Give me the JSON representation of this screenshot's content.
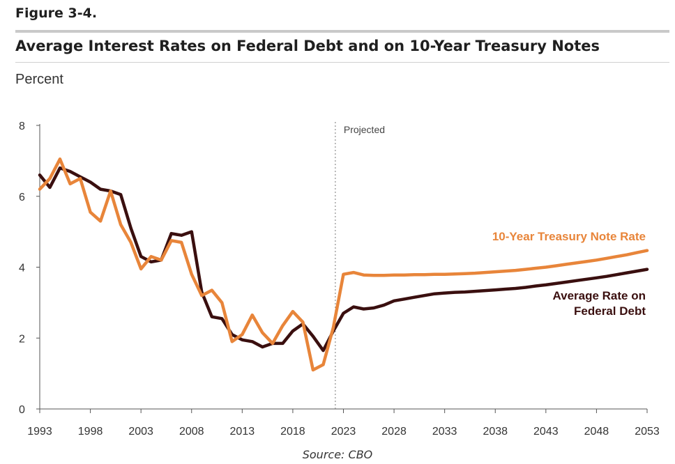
{
  "figure_label": "Figure 3-4.",
  "source": "Source: CBO",
  "chart_data": {
    "type": "line",
    "title": "Average Interest Rates on Federal Debt and on 10-Year Treasury Notes",
    "ylabel": "Percent",
    "xlabel": "",
    "xlim": [
      1993,
      2053
    ],
    "ylim": [
      0,
      8
    ],
    "x_ticks": [
      1993,
      1998,
      2003,
      2008,
      2013,
      2018,
      2023,
      2028,
      2033,
      2038,
      2043,
      2048,
      2053
    ],
    "y_ticks": [
      0,
      2,
      4,
      6,
      8
    ],
    "grid": false,
    "projection_line": {
      "x": 2022.2,
      "label": "Projected"
    },
    "series": [
      {
        "name": "Average Rate on Federal Debt",
        "label_lines": [
          "Average Rate on",
          "Federal Debt"
        ],
        "color": "#3a0f0f",
        "x": [
          1993,
          1994,
          1995,
          1996,
          1997,
          1998,
          1999,
          2000,
          2001,
          2002,
          2003,
          2004,
          2005,
          2006,
          2007,
          2008,
          2009,
          2010,
          2011,
          2012,
          2013,
          2014,
          2015,
          2016,
          2017,
          2018,
          2019,
          2020,
          2021,
          2022,
          2023,
          2024,
          2025,
          2026,
          2027,
          2028,
          2029,
          2030,
          2031,
          2032,
          2033,
          2034,
          2035,
          2036,
          2037,
          2038,
          2039,
          2040,
          2041,
          2042,
          2043,
          2044,
          2045,
          2046,
          2047,
          2048,
          2049,
          2050,
          2051,
          2052,
          2053
        ],
        "values": [
          6.6,
          6.25,
          6.8,
          6.7,
          6.55,
          6.4,
          6.2,
          6.15,
          6.05,
          5.1,
          4.3,
          4.15,
          4.2,
          4.95,
          4.9,
          5.0,
          3.3,
          2.6,
          2.55,
          2.1,
          1.95,
          1.9,
          1.75,
          1.85,
          1.85,
          2.2,
          2.4,
          2.05,
          1.65,
          2.2,
          2.7,
          2.88,
          2.82,
          2.85,
          2.93,
          3.05,
          3.1,
          3.15,
          3.2,
          3.25,
          3.27,
          3.29,
          3.3,
          3.32,
          3.34,
          3.36,
          3.38,
          3.4,
          3.43,
          3.47,
          3.5,
          3.54,
          3.58,
          3.62,
          3.66,
          3.7,
          3.74,
          3.79,
          3.84,
          3.89,
          3.94
        ]
      },
      {
        "name": "10-Year Treasury Note Rate",
        "label_lines": [
          "10-Year Treasury Note Rate"
        ],
        "color": "#e8853a",
        "x": [
          1993,
          1994,
          1995,
          1996,
          1997,
          1998,
          1999,
          2000,
          2001,
          2002,
          2003,
          2004,
          2005,
          2006,
          2007,
          2008,
          2009,
          2010,
          2011,
          2012,
          2013,
          2014,
          2015,
          2016,
          2017,
          2018,
          2019,
          2020,
          2021,
          2022,
          2023,
          2024,
          2025,
          2026,
          2027,
          2028,
          2029,
          2030,
          2031,
          2032,
          2033,
          2034,
          2035,
          2036,
          2037,
          2038,
          2039,
          2040,
          2041,
          2042,
          2043,
          2044,
          2045,
          2046,
          2047,
          2048,
          2049,
          2050,
          2051,
          2052,
          2053
        ],
        "values": [
          6.2,
          6.5,
          7.05,
          6.35,
          6.5,
          5.55,
          5.3,
          6.15,
          5.2,
          4.7,
          3.95,
          4.3,
          4.2,
          4.75,
          4.7,
          3.8,
          3.2,
          3.35,
          3.0,
          1.9,
          2.1,
          2.65,
          2.15,
          1.85,
          2.35,
          2.75,
          2.45,
          1.1,
          1.25,
          2.3,
          3.8,
          3.85,
          3.78,
          3.77,
          3.77,
          3.78,
          3.78,
          3.79,
          3.79,
          3.8,
          3.8,
          3.81,
          3.82,
          3.83,
          3.85,
          3.87,
          3.89,
          3.91,
          3.94,
          3.97,
          4.0,
          4.04,
          4.08,
          4.12,
          4.16,
          4.2,
          4.25,
          4.3,
          4.35,
          4.41,
          4.47
        ]
      }
    ]
  }
}
